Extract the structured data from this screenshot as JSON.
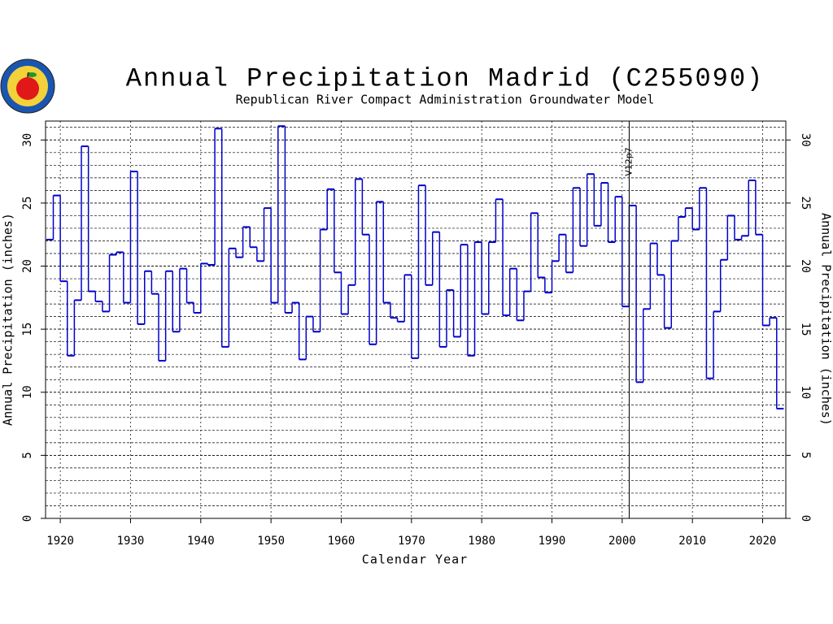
{
  "chart_data": {
    "type": "step",
    "title": "Annual Precipitation Madrid (C255090)",
    "subtitle": "Republican River Compact Administration Groundwater Model",
    "x_label": "Calendar Year",
    "y_label": "Annual Precipitation (inches)",
    "y2_label": "Annual Precipitation (inches)",
    "x": [
      1918,
      1919,
      1920,
      1921,
      1922,
      1923,
      1924,
      1925,
      1926,
      1927,
      1928,
      1929,
      1930,
      1931,
      1932,
      1933,
      1934,
      1935,
      1936,
      1937,
      1938,
      1939,
      1940,
      1941,
      1942,
      1943,
      1944,
      1945,
      1946,
      1947,
      1948,
      1949,
      1950,
      1951,
      1952,
      1953,
      1954,
      1955,
      1956,
      1957,
      1958,
      1959,
      1960,
      1961,
      1962,
      1963,
      1964,
      1965,
      1966,
      1967,
      1968,
      1969,
      1970,
      1971,
      1972,
      1973,
      1974,
      1975,
      1976,
      1977,
      1978,
      1979,
      1980,
      1981,
      1982,
      1983,
      1984,
      1985,
      1986,
      1987,
      1988,
      1989,
      1990,
      1991,
      1992,
      1993,
      1994,
      1995,
      1996,
      1997,
      1998,
      1999,
      2000,
      2001,
      2002,
      2003,
      2004,
      2005,
      2006,
      2007,
      2008,
      2009,
      2010,
      2011,
      2012,
      2013,
      2014,
      2015,
      2016,
      2017,
      2018,
      2019,
      2020,
      2021,
      2022
    ],
    "series": [
      {
        "name": "Annual Precipitation",
        "color": "#0000cc",
        "values": [
          22.1,
          25.6,
          18.8,
          12.9,
          17.3,
          29.5,
          18.0,
          17.2,
          16.4,
          20.9,
          21.1,
          17.1,
          27.5,
          15.4,
          19.6,
          17.8,
          12.5,
          19.6,
          14.8,
          19.8,
          17.1,
          16.3,
          20.2,
          20.1,
          30.9,
          13.6,
          21.4,
          20.7,
          23.1,
          21.5,
          20.4,
          24.6,
          17.1,
          31.1,
          16.3,
          17.1,
          12.6,
          16.0,
          14.8,
          22.9,
          26.1,
          19.5,
          16.2,
          18.5,
          26.9,
          22.5,
          13.8,
          25.1,
          17.1,
          15.9,
          15.6,
          19.3,
          12.7,
          26.4,
          18.5,
          22.7,
          13.6,
          18.1,
          14.4,
          21.7,
          12.9,
          21.9,
          16.2,
          21.9,
          25.3,
          16.1,
          19.8,
          15.7,
          18.0,
          24.2,
          19.1,
          17.9,
          20.4,
          22.5,
          19.5,
          26.2,
          21.6,
          27.3,
          23.2,
          26.6,
          21.9,
          25.5,
          16.8,
          24.8,
          10.8,
          16.6,
          21.8,
          19.3,
          15.1,
          22.0,
          23.9,
          24.6,
          22.9,
          26.2,
          11.1,
          16.4,
          20.5,
          24.0,
          22.1,
          22.4,
          26.8,
          22.5,
          15.3,
          15.9,
          8.7
        ]
      }
    ],
    "xlim": [
      1917.9,
      2023.3
    ],
    "xticks": [
      1920,
      1930,
      1940,
      1950,
      1960,
      1970,
      1980,
      1990,
      2000,
      2010,
      2020
    ],
    "ylim": [
      0,
      31.5
    ],
    "yticks": [
      0,
      5,
      10,
      15,
      20,
      25,
      30
    ],
    "y2lim": [
      0,
      31.5
    ],
    "y2ticks": [
      0,
      5,
      10,
      15,
      20,
      25,
      30
    ],
    "grid": true,
    "grid_step": 1,
    "annotation": {
      "text": "V12p7",
      "x": 2001
    }
  }
}
